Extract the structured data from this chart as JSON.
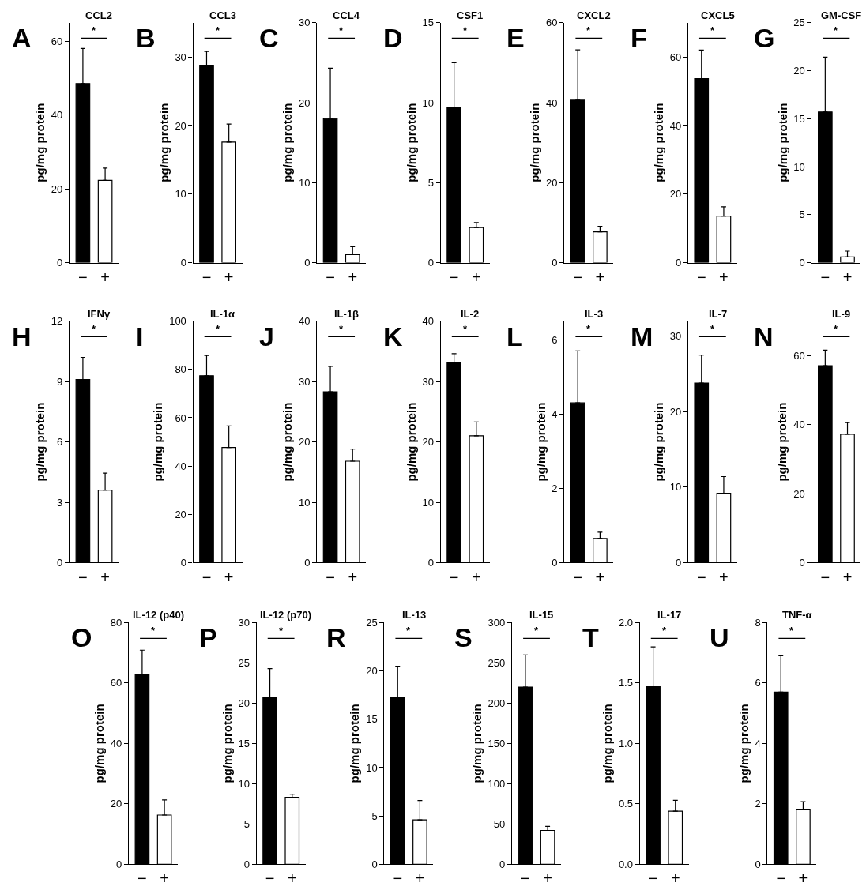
{
  "chart_data": [
    {
      "type": "bar",
      "title": "CCL2",
      "annotations": [
        "A",
        "*"
      ],
      "categories": [
        "−",
        "+"
      ],
      "values": [
        48.5,
        22.3
      ],
      "colors": [
        "#000000",
        "#ffffff"
      ],
      "errors": [
        [
          48.5,
          58
        ],
        [
          22.3,
          25.6
        ]
      ],
      "ylabel": "pg/mg protein",
      "ylim": [
        0,
        65
      ],
      "yticks": [
        0,
        20,
        40,
        60
      ]
    },
    {
      "type": "bar",
      "title": "CCL3",
      "annotations": [
        "B",
        "*"
      ],
      "categories": [
        "−",
        "+"
      ],
      "values": [
        28.8,
        17.6
      ],
      "colors": [
        "#000000",
        "#ffffff"
      ],
      "errors": [
        [
          28.8,
          30.8
        ],
        [
          17.6,
          20.2
        ]
      ],
      "ylabel": "pg/mg protein",
      "ylim": [
        0,
        35
      ],
      "yticks": [
        0,
        10,
        20,
        30
      ]
    },
    {
      "type": "bar",
      "title": "CCL4",
      "annotations": [
        "C",
        "*"
      ],
      "categories": [
        "−",
        "+"
      ],
      "values": [
        18,
        1.0
      ],
      "colors": [
        "#000000",
        "#ffffff"
      ],
      "errors": [
        [
          18,
          24.3
        ],
        [
          1.0,
          2.0
        ]
      ],
      "ylabel": "pg/mg protein",
      "ylim": [
        0,
        30
      ],
      "yticks": [
        0,
        10,
        20,
        30
      ]
    },
    {
      "type": "bar",
      "title": "CSF1",
      "annotations": [
        "D",
        "*"
      ],
      "categories": [
        "−",
        "+"
      ],
      "values": [
        9.7,
        2.2
      ],
      "colors": [
        "#000000",
        "#ffffff"
      ],
      "errors": [
        [
          9.7,
          12.5
        ],
        [
          2.2,
          2.5
        ]
      ],
      "ylabel": "pg/mg protein",
      "ylim": [
        0,
        15
      ],
      "yticks": [
        0,
        5,
        10,
        15
      ]
    },
    {
      "type": "bar",
      "title": "CXCL2",
      "annotations": [
        "E",
        "*"
      ],
      "categories": [
        "−",
        "+"
      ],
      "values": [
        40.8,
        7.7
      ],
      "colors": [
        "#000000",
        "#ffffff"
      ],
      "errors": [
        [
          40.8,
          53.2
        ],
        [
          7.7,
          9.1
        ]
      ],
      "ylabel": "pg/mg protein",
      "ylim": [
        0,
        60
      ],
      "yticks": [
        0,
        20,
        40,
        60
      ]
    },
    {
      "type": "bar",
      "title": "CXCL5",
      "annotations": [
        "F",
        "*"
      ],
      "categories": [
        "−",
        "+"
      ],
      "values": [
        53.7,
        13.6
      ],
      "colors": [
        "#000000",
        "#ffffff"
      ],
      "errors": [
        [
          53.7,
          62
        ],
        [
          13.6,
          16.3
        ]
      ],
      "ylabel": "pg/mg protein",
      "ylim": [
        0,
        70
      ],
      "yticks": [
        0,
        20,
        40,
        60
      ]
    },
    {
      "type": "bar",
      "title": "GM-CSF",
      "annotations": [
        "G",
        "*"
      ],
      "categories": [
        "−",
        "+"
      ],
      "values": [
        15.7,
        0.6
      ],
      "colors": [
        "#000000",
        "#ffffff"
      ],
      "errors": [
        [
          15.7,
          21.4
        ],
        [
          0.6,
          1.2
        ]
      ],
      "ylabel": "pg/mg protein",
      "ylim": [
        0,
        25
      ],
      "yticks": [
        0,
        5,
        10,
        15,
        20,
        25
      ]
    },
    {
      "type": "bar",
      "title": "IFNγ",
      "annotations": [
        "H",
        "*"
      ],
      "categories": [
        "−",
        "+"
      ],
      "values": [
        9.1,
        3.6
      ],
      "colors": [
        "#000000",
        "#ffffff"
      ],
      "errors": [
        [
          9.1,
          10.2
        ],
        [
          3.6,
          4.45
        ]
      ],
      "ylabel": "pg/mg protein",
      "ylim": [
        0,
        12
      ],
      "yticks": [
        0,
        3,
        6,
        9,
        12
      ]
    },
    {
      "type": "bar",
      "title": "IL-1α",
      "annotations": [
        "I",
        "*"
      ],
      "categories": [
        "−",
        "+"
      ],
      "values": [
        77.4,
        47.7
      ],
      "colors": [
        "#000000",
        "#ffffff"
      ],
      "errors": [
        [
          77.4,
          85.8
        ],
        [
          47.7,
          56.6
        ]
      ],
      "ylabel": "pg/mg protein",
      "ylim": [
        0,
        100
      ],
      "yticks": [
        0,
        20,
        40,
        60,
        80,
        100
      ]
    },
    {
      "type": "bar",
      "title": "IL-1β",
      "annotations": [
        "J",
        "*"
      ],
      "categories": [
        "−",
        "+"
      ],
      "values": [
        28.3,
        16.8
      ],
      "colors": [
        "#000000",
        "#ffffff"
      ],
      "errors": [
        [
          28.3,
          32.5
        ],
        [
          16.8,
          18.8
        ]
      ],
      "ylabel": "pg/mg protein",
      "ylim": [
        0,
        40
      ],
      "yticks": [
        0,
        10,
        20,
        30,
        40
      ]
    },
    {
      "type": "bar",
      "title": "IL-2",
      "annotations": [
        "K",
        "*"
      ],
      "categories": [
        "−",
        "+"
      ],
      "values": [
        33.1,
        21
      ],
      "colors": [
        "#000000",
        "#ffffff"
      ],
      "errors": [
        [
          33.1,
          34.6
        ],
        [
          21,
          23.3
        ]
      ],
      "ylabel": "pg/mg protein",
      "ylim": [
        0,
        40
      ],
      "yticks": [
        0,
        10,
        20,
        30,
        40
      ]
    },
    {
      "type": "bar",
      "title": "IL-3",
      "annotations": [
        "L",
        "*"
      ],
      "categories": [
        "−",
        "+"
      ],
      "values": [
        4.3,
        0.65
      ],
      "colors": [
        "#000000",
        "#ffffff"
      ],
      "errors": [
        [
          4.3,
          5.7
        ],
        [
          0.65,
          0.82
        ]
      ],
      "ylabel": "pg/mg protein",
      "ylim": [
        0,
        6.5
      ],
      "yticks": [
        0,
        2,
        4,
        6
      ]
    },
    {
      "type": "bar",
      "title": "IL-7",
      "annotations": [
        "M",
        "*"
      ],
      "categories": [
        "−",
        "+"
      ],
      "values": [
        23.8,
        9.2
      ],
      "colors": [
        "#000000",
        "#ffffff"
      ],
      "errors": [
        [
          23.8,
          27.5
        ],
        [
          9.2,
          11.4
        ]
      ],
      "ylabel": "pg/mg protein",
      "ylim": [
        0,
        32
      ],
      "yticks": [
        0,
        10,
        20,
        30
      ]
    },
    {
      "type": "bar",
      "title": "IL-9",
      "annotations": [
        "N",
        "*"
      ],
      "categories": [
        "−",
        "+"
      ],
      "values": [
        57.1,
        37.2
      ],
      "colors": [
        "#000000",
        "#ffffff"
      ],
      "errors": [
        [
          57.1,
          61.6
        ],
        [
          37.2,
          40.6
        ]
      ],
      "ylabel": "pg/mg protein",
      "ylim": [
        0,
        70
      ],
      "yticks": [
        0,
        20,
        40,
        60
      ]
    },
    {
      "type": "bar",
      "title": "IL-12 (p40)",
      "annotations": [
        "O",
        "*"
      ],
      "categories": [
        "−",
        "+"
      ],
      "values": [
        62.9,
        16.3
      ],
      "colors": [
        "#000000",
        "#ffffff"
      ],
      "errors": [
        [
          62.9,
          70.9
        ],
        [
          16.3,
          21.3
        ]
      ],
      "ylabel": "pg/mg protein",
      "ylim": [
        0,
        80
      ],
      "yticks": [
        0,
        20,
        40,
        60,
        80
      ]
    },
    {
      "type": "bar",
      "title": "IL-12 (p70)",
      "annotations": [
        "P",
        "*"
      ],
      "categories": [
        "−",
        "+"
      ],
      "values": [
        20.7,
        8.3
      ],
      "colors": [
        "#000000",
        "#ffffff"
      ],
      "errors": [
        [
          20.7,
          24.3
        ],
        [
          8.3,
          8.7
        ]
      ],
      "ylabel": "pg/mg protein",
      "ylim": [
        0,
        30
      ],
      "yticks": [
        0,
        5,
        10,
        15,
        20,
        25,
        30
      ]
    },
    {
      "type": "bar",
      "title": "IL-13",
      "annotations": [
        "R",
        "*"
      ],
      "categories": [
        "−",
        "+"
      ],
      "values": [
        17.3,
        4.6
      ],
      "colors": [
        "#000000",
        "#ffffff"
      ],
      "errors": [
        [
          17.3,
          20.5
        ],
        [
          4.6,
          6.6
        ]
      ],
      "ylabel": "pg/mg protein",
      "ylim": [
        0,
        25
      ],
      "yticks": [
        0,
        5,
        10,
        15,
        20,
        25
      ]
    },
    {
      "type": "bar",
      "title": "IL-15",
      "annotations": [
        "S",
        "*"
      ],
      "categories": [
        "−",
        "+"
      ],
      "values": [
        220,
        42
      ],
      "colors": [
        "#000000",
        "#ffffff"
      ],
      "errors": [
        [
          220,
          260
        ],
        [
          42,
          47
        ]
      ],
      "ylabel": "pg/mg protein",
      "ylim": [
        0,
        300
      ],
      "yticks": [
        0,
        50,
        100,
        150,
        200,
        250,
        300
      ]
    },
    {
      "type": "bar",
      "title": "IL-17",
      "annotations": [
        "T",
        "*"
      ],
      "categories": [
        "−",
        "+"
      ],
      "values": [
        1.47,
        0.44
      ],
      "colors": [
        "#000000",
        "#ffffff"
      ],
      "errors": [
        [
          1.47,
          1.8
        ],
        [
          0.44,
          0.53
        ]
      ],
      "ylabel": "pg/mg protein",
      "ylim": [
        0,
        2.0
      ],
      "yticks": [
        {
          "value": 0,
          "label": "0.0"
        },
        {
          "value": 0.5,
          "label": "0.5"
        },
        {
          "value": 1,
          "label": "1.0"
        },
        {
          "value": 1.5,
          "label": "1.5"
        },
        {
          "value": 2,
          "label": "2.0"
        }
      ]
    },
    {
      "type": "bar",
      "title": "TNF-α",
      "annotations": [
        "U",
        "*"
      ],
      "categories": [
        "−",
        "+"
      ],
      "values": [
        5.7,
        1.8
      ],
      "colors": [
        "#000000",
        "#ffffff"
      ],
      "errors": [
        [
          5.7,
          6.9
        ],
        [
          1.8,
          2.07
        ]
      ],
      "ylabel": "pg/mg protein",
      "ylim": [
        0,
        8
      ],
      "yticks": [
        0,
        2,
        4,
        6,
        8
      ]
    }
  ]
}
